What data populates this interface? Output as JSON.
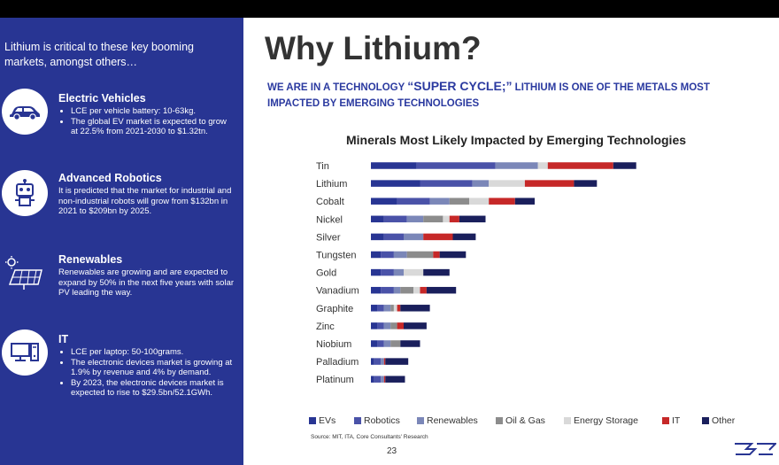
{
  "sidebar": {
    "intro": "Lithium is critical to these key booming markets, amongst others…",
    "items": [
      {
        "title": "Electric Vehicles",
        "bullets": [
          "LCE per vehicle battery: 10-63kg.",
          "The global EV market is expected to grow at 22.5% from 2021-2030 to $1.32tn."
        ],
        "icon": "car-icon"
      },
      {
        "title": "Advanced Robotics",
        "body": "It is predicted that the market for industrial and non-industrial robots will grow from $132bn in 2021 to $209bn by 2025.",
        "icon": "robot-icon"
      },
      {
        "title": "Renewables",
        "body": "Renewables are growing and are expected to expand by 50% in the next five years with solar PV leading the way.",
        "icon": "solar-panel-icon"
      },
      {
        "title": "IT",
        "bullets": [
          "LCE per laptop: 50-100grams.",
          "The electronic devices market is growing at 1.9% by revenue and 4% by demand.",
          "By 2023, the electronic devices market is expected to rise to $29.5bn/52.1GWh."
        ],
        "icon": "computer-icon"
      }
    ]
  },
  "main": {
    "title": "Why Lithium?",
    "subtitle_pre": "WE ARE IN A TECHNOLOGY ",
    "subtitle_em": "“SUPER CYCLE;”",
    "subtitle_post": " LITHIUM IS ONE OF THE METALS MOST IMPACTED BY EMERGING TECHNOLOGIES",
    "source": "Source: MIT, ITA, Core Consultants' Research",
    "page_number": "23"
  },
  "colors": {
    "sidebar_bg": "#283593",
    "subtitle": "#2b3aa0"
  },
  "chart_data": {
    "type": "bar",
    "orientation": "horizontal",
    "stacked": true,
    "title": "Minerals Most Likely Impacted by Emerging Technologies",
    "categories": [
      "Tin",
      "Lithium",
      "Cobalt",
      "Nickel",
      "Silver",
      "Tungsten",
      "Gold",
      "Vanadium",
      "Graphite",
      "Zinc",
      "Niobium",
      "Palladium",
      "Platinum"
    ],
    "legend_position": "bottom",
    "grid": false,
    "series": [
      {
        "name": "EVs",
        "color": "#283593",
        "values": [
          7,
          7.5,
          4,
          2,
          2,
          1.5,
          1.5,
          1.5,
          1,
          1,
          1,
          0.5,
          0.5
        ]
      },
      {
        "name": "Robotics",
        "color": "#4a52a8",
        "values": [
          12,
          8,
          5,
          3.5,
          3,
          2,
          2,
          2,
          1,
          1,
          1,
          1,
          1
        ]
      },
      {
        "name": "Renewables",
        "color": "#7b87b8",
        "values": [
          6.5,
          2.5,
          3,
          2.5,
          3,
          2,
          1.5,
          1,
          1,
          1,
          1,
          0.5,
          0.5
        ]
      },
      {
        "name": "Oil & Gas",
        "color": "#8c8c8c",
        "values": [
          0,
          0,
          3,
          3,
          0,
          4,
          0,
          2,
          0.5,
          1,
          1.5,
          0,
          0
        ]
      },
      {
        "name": "Energy Storage",
        "color": "#d9d9d9",
        "values": [
          1.5,
          5.5,
          3,
          1,
          0,
          0,
          3,
          1,
          0.5,
          0,
          0,
          0,
          0
        ]
      },
      {
        "name": "IT",
        "color": "#c62828",
        "values": [
          10,
          7.5,
          4,
          1.5,
          4.5,
          1,
          0,
          1,
          0.5,
          1,
          0,
          0.2,
          0.2
        ]
      },
      {
        "name": "Other",
        "color": "#1a1f5c",
        "values": [
          3.5,
          3.5,
          3,
          4,
          3.5,
          4,
          4,
          4.5,
          4.5,
          3.5,
          3,
          3.5,
          3
        ]
      }
    ]
  }
}
